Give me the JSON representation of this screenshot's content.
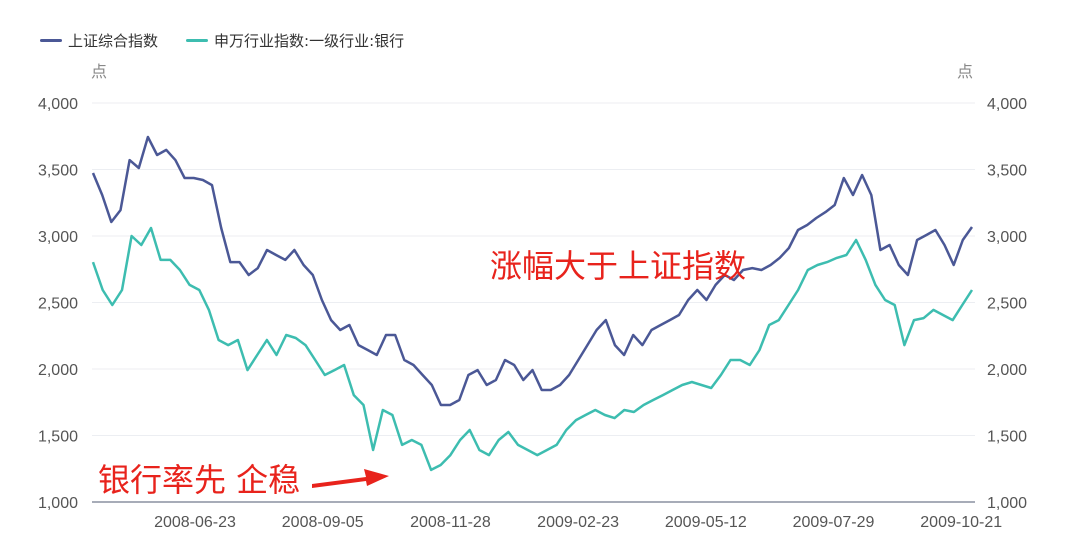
{
  "chart_data": {
    "type": "line",
    "legend_position": "top-left",
    "grid": true,
    "y_unit_left": "点",
    "y_unit_right": "点",
    "ylim": [
      1000,
      4000
    ],
    "y_ticks": [
      "1,000",
      "1,500",
      "2,000",
      "2,500",
      "3,000",
      "3,500",
      "4,000"
    ],
    "x_ticks": [
      "2008-06-23",
      "2008-09-05",
      "2008-11-28",
      "2009-02-23",
      "2009-05-12",
      "2009-07-29",
      "2009-10-21"
    ],
    "series": [
      {
        "name": "上证综合指数",
        "color": "#4b5896",
        "values": [
          3474,
          3308,
          3105,
          3195,
          3571,
          3511,
          3744,
          3609,
          3647,
          3571,
          3436,
          3436,
          3421,
          3383,
          3060,
          2804,
          2804,
          2707,
          2759,
          2895,
          2857,
          2820,
          2895,
          2782,
          2707,
          2519,
          2368,
          2293,
          2331,
          2180,
          2143,
          2105,
          2256,
          2256,
          2068,
          2030,
          1955,
          1880,
          1729,
          1729,
          1767,
          1955,
          1992,
          1880,
          1917,
          2068,
          2030,
          1917,
          1992,
          1842,
          1842,
          1880,
          1955,
          2068,
          2180,
          2293,
          2368,
          2180,
          2105,
          2256,
          2180,
          2293,
          2331,
          2368,
          2406,
          2519,
          2594,
          2519,
          2632,
          2707,
          2669,
          2744,
          2759,
          2744,
          2782,
          2835,
          2910,
          3045,
          3083,
          3135,
          3180,
          3233,
          3436,
          3308,
          3459,
          3308,
          2895,
          2932,
          2782,
          2707,
          2970,
          3007,
          3045,
          2932,
          2782,
          2970,
          3068
        ]
      },
      {
        "name": "申万行业指数:一级行业:银行",
        "color": "#3dbdb0",
        "values": [
          2804,
          2594,
          2481,
          2594,
          3000,
          2932,
          3060,
          2820,
          2820,
          2744,
          2632,
          2594,
          2444,
          2218,
          2180,
          2218,
          1992,
          2105,
          2218,
          2105,
          2256,
          2233,
          2180,
          2068,
          1955,
          1992,
          2030,
          1804,
          1729,
          1391,
          1692,
          1654,
          1429,
          1466,
          1429,
          1241,
          1278,
          1353,
          1466,
          1541,
          1391,
          1353,
          1466,
          1526,
          1429,
          1391,
          1353,
          1391,
          1429,
          1541,
          1616,
          1654,
          1692,
          1654,
          1631,
          1692,
          1677,
          1729,
          1767,
          1804,
          1842,
          1880,
          1902,
          1880,
          1857,
          1955,
          2068,
          2068,
          2030,
          2143,
          2331,
          2368,
          2481,
          2594,
          2744,
          2782,
          2804,
          2835,
          2857,
          2970,
          2820,
          2632,
          2519,
          2481,
          2180,
          2368,
          2383,
          2444,
          2406,
          2368,
          2481,
          2594
        ]
      }
    ],
    "annotations": [
      {
        "text": "涨幅大于上证指数",
        "color": "#e8231c"
      },
      {
        "text": "银行率先 企稳",
        "color": "#e8231c"
      }
    ]
  }
}
